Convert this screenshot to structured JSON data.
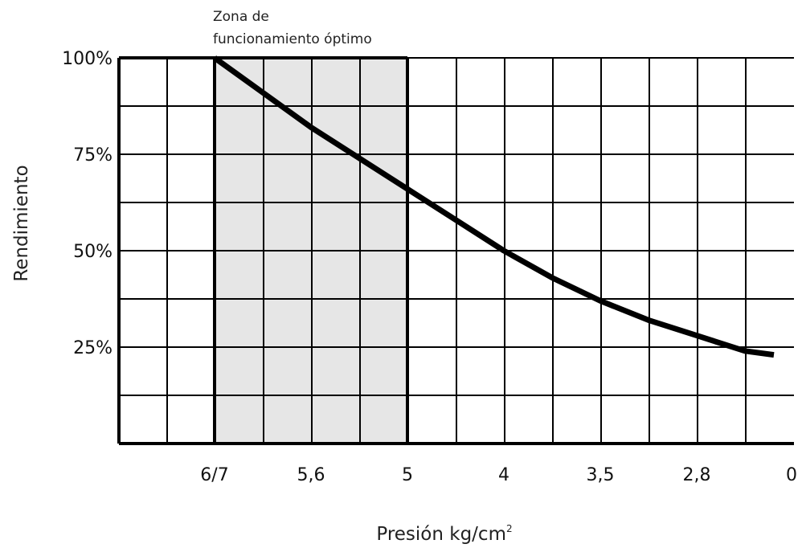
{
  "chart_data": {
    "type": "line",
    "title": "",
    "xlabel": "Presión kg/cm",
    "xlabel_superscript": "2",
    "ylabel": "Rendimiento",
    "x_tick_labels": [
      "6/7",
      "5,6",
      "5",
      "4",
      "3,5",
      "2,8",
      "0"
    ],
    "y_tick_labels": [
      "100%",
      "75%",
      "50%",
      "25%"
    ],
    "y_tick_values": [
      100,
      75,
      50,
      25
    ],
    "ylim": [
      0,
      100
    ],
    "grid": true,
    "zone": {
      "label_line1": "Zona de",
      "label_line2": "funcionamiento óptimo",
      "from_tick": "6/7",
      "to_tick": "5",
      "fill": "#e6e6e6"
    },
    "series": [
      {
        "x_tick_positions": [
          0,
          0.5,
          1,
          1.5,
          2,
          2.5,
          3,
          3.5,
          4,
          4.5,
          5,
          5.5,
          5.8
        ],
        "values": [
          100,
          91,
          82,
          74,
          66,
          58,
          50,
          43,
          37,
          32,
          28,
          24,
          23
        ],
        "color": "#000000"
      }
    ]
  }
}
